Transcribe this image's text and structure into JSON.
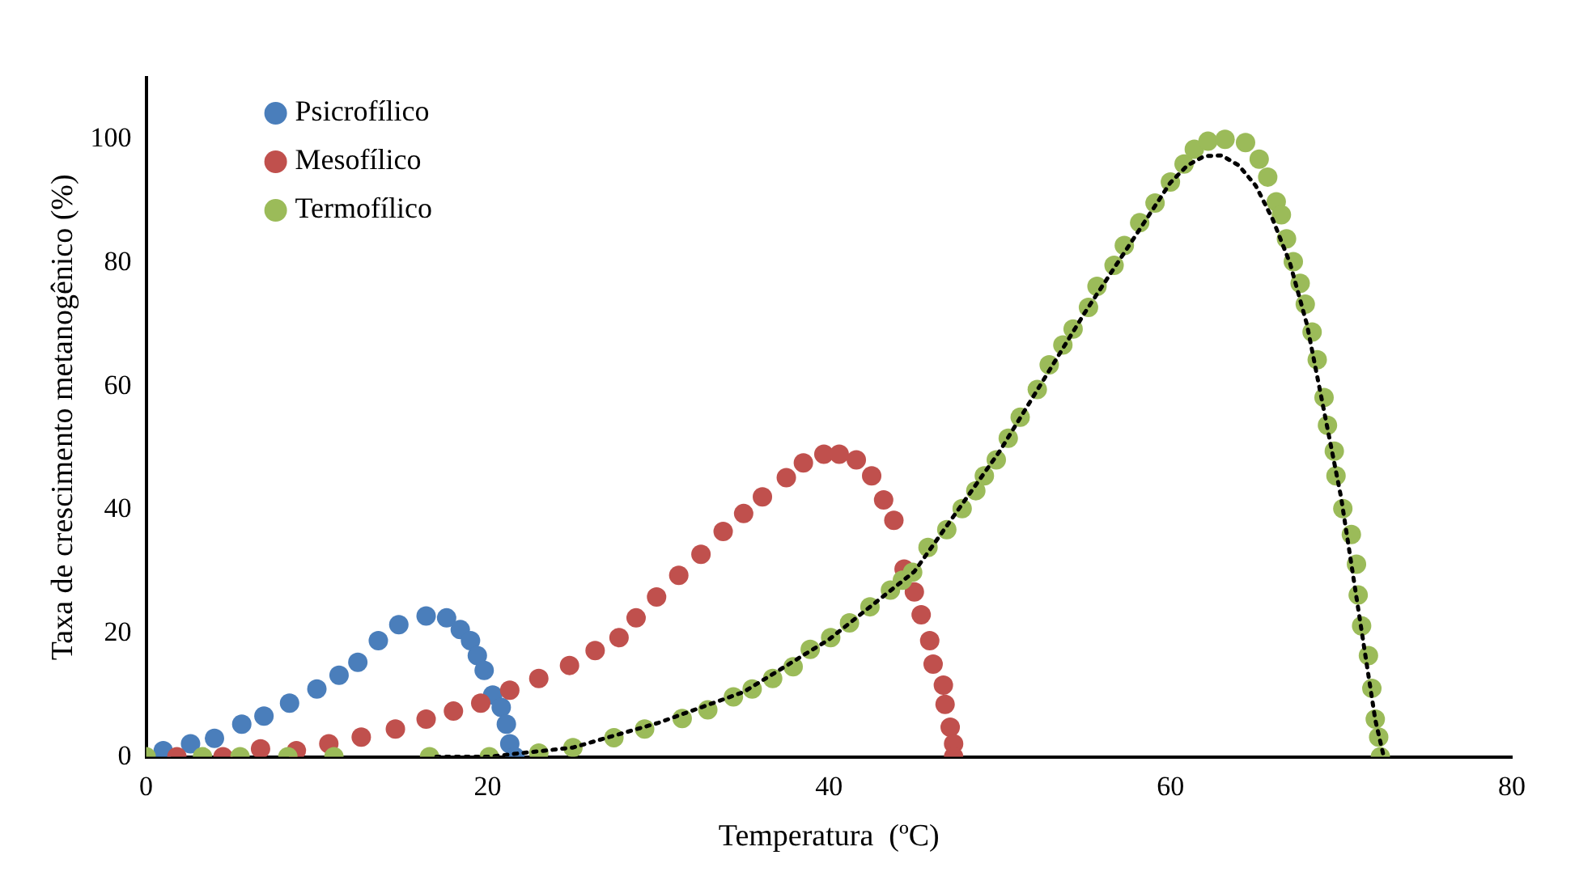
{
  "chart_data": {
    "type": "scatter",
    "xlabel": "Temperatura  (ºC)",
    "ylabel": "Taxa de crescimento metanogênico (%)",
    "xlim": [
      0,
      80
    ],
    "xticks": [
      0,
      20,
      40,
      60,
      80
    ],
    "ylim": [
      0,
      110
    ],
    "yticks": [
      0,
      20,
      40,
      60,
      80,
      100
    ],
    "grid": false,
    "legend": "top left",
    "marker": "circle",
    "series": [
      {
        "name": "Psicrofílico",
        "color": "#4a7ebb",
        "x": [
          1,
          2.6,
          4,
          5.6,
          6.9,
          8.4,
          10,
          11.3,
          12.4,
          13.6,
          14.8,
          16.4,
          17.6,
          18.4,
          19,
          19.4,
          19.8,
          20.3,
          20.8,
          21.1,
          21.3,
          21.6
        ],
        "values": [
          1,
          2.1,
          3,
          5.3,
          6.6,
          8.7,
          11,
          13.2,
          15.3,
          18.8,
          21.4,
          22.8,
          22.5,
          20.6,
          18.8,
          16.4,
          14,
          10,
          8,
          5.3,
          2.1,
          0
        ]
      },
      {
        "name": "Mesofílico",
        "color": "#c0504d",
        "x": [
          1.8,
          4.5,
          6.7,
          8.8,
          10.7,
          12.6,
          14.6,
          16.4,
          18,
          19.6,
          21.3,
          23,
          24.8,
          26.3,
          27.7,
          28.7,
          29.9,
          31.2,
          32.5,
          33.8,
          35,
          36.1,
          37.5,
          38.5,
          39.7,
          40.6,
          41.6,
          42.5,
          43.2,
          43.8,
          44.4,
          45,
          45.4,
          45.9,
          46.1,
          46.7,
          46.8,
          47.1,
          47.3,
          47.3
        ],
        "values": [
          0,
          0,
          1.3,
          1,
          2.1,
          3.2,
          4.5,
          6.1,
          7.4,
          8.7,
          10.8,
          12.7,
          14.8,
          17.2,
          19.3,
          22.5,
          25.9,
          29.4,
          32.8,
          36.5,
          39.4,
          42.1,
          45.2,
          47.6,
          49,
          49,
          48.1,
          45.5,
          41.6,
          38.3,
          30.4,
          26.7,
          23,
          18.8,
          15,
          11.6,
          8.5,
          4.8,
          2.1,
          0
        ]
      },
      {
        "name": "Termofílico",
        "color": "#9bbb59",
        "x": [
          0,
          3.3,
          5.5,
          8.3,
          11,
          16.6,
          20.1,
          23,
          25,
          27.4,
          29.2,
          31.4,
          32.9,
          34.4,
          35.5,
          36.7,
          37.9,
          38.9,
          40.1,
          41.2,
          42.4,
          43.6,
          44.3,
          44.9,
          45.8,
          46.9,
          47.8,
          48.6,
          49.1,
          49.8,
          50.5,
          51.2,
          52.2,
          52.9,
          53.7,
          54.3,
          55.2,
          55.7,
          56.7,
          57.3,
          58.2,
          59.1,
          60,
          60.8,
          61.4,
          62.2,
          63.2,
          64.4,
          65.2,
          65.7,
          66.2,
          66.5,
          66.8,
          67.2,
          67.6,
          67.9,
          68.3,
          68.6,
          69,
          69.2,
          69.6,
          69.7,
          70.1,
          70.6,
          70.9,
          71,
          71.2,
          71.6,
          71.8,
          72,
          72.2,
          72.3
        ],
        "values": [
          0,
          0,
          0,
          0,
          0,
          0,
          0,
          0.6,
          1.5,
          3.1,
          4.5,
          6.2,
          7.6,
          9.7,
          11,
          12.7,
          14.6,
          17.4,
          19.3,
          21.7,
          24.3,
          27,
          28.6,
          29.9,
          33.9,
          36.8,
          40.2,
          43.1,
          45.5,
          48.1,
          51.6,
          55,
          59.5,
          63.5,
          66.7,
          69.3,
          72.8,
          76.2,
          79.6,
          82.8,
          86.5,
          89.7,
          93.1,
          96,
          98.4,
          99.7,
          100,
          99.5,
          96.8,
          93.9,
          89.9,
          87.8,
          83.9,
          80.2,
          76.7,
          73.3,
          68.8,
          64.3,
          58.2,
          53.7,
          49.5,
          45.5,
          40.2,
          36,
          31.2,
          26.2,
          21.2,
          16.4,
          11.1,
          6.1,
          3.2,
          0
        ]
      },
      {
        "type": "line",
        "color": "#000000",
        "line_style": "dotted",
        "marker": "none",
        "x": [
          17,
          20,
          25,
          30,
          35,
          40,
          45,
          50,
          55,
          60,
          61,
          62,
          63,
          64,
          65,
          66,
          67,
          68,
          70,
          72,
          72.5
        ],
        "values": [
          0,
          0,
          1.5,
          5.5,
          10.5,
          19,
          30,
          49.5,
          72,
          93,
          95.8,
          97.3,
          97.4,
          95.8,
          92.5,
          87,
          80,
          70,
          42,
          6,
          0
        ]
      }
    ]
  }
}
